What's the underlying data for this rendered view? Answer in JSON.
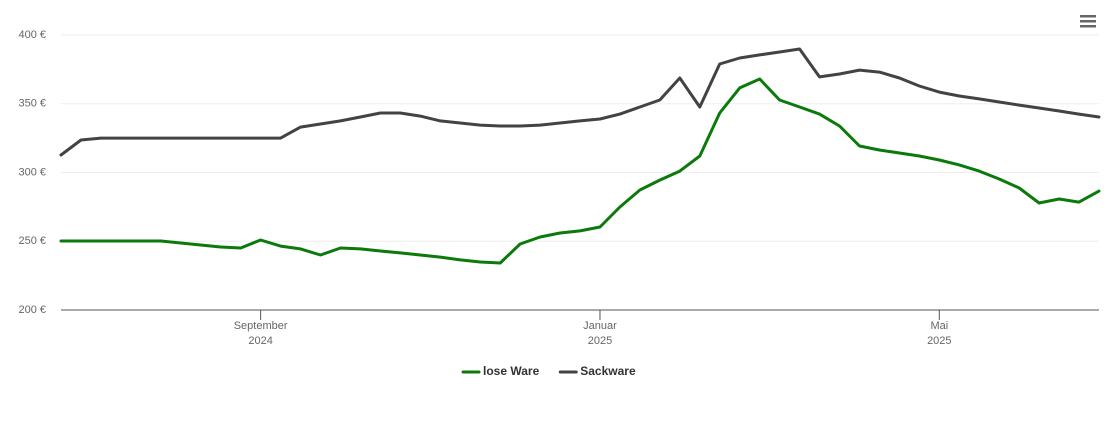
{
  "chart_data": {
    "type": "line",
    "categories": [
      null,
      null,
      null,
      null,
      null,
      null,
      null,
      null,
      null,
      null,
      [
        "September",
        "2024"
      ],
      null,
      null,
      null,
      null,
      null,
      null,
      null,
      null,
      null,
      null,
      null,
      null,
      null,
      null,
      null,
      null,
      [
        "Januar",
        "2025"
      ],
      null,
      null,
      null,
      null,
      null,
      null,
      null,
      null,
      null,
      null,
      null,
      null,
      null,
      null,
      null,
      null,
      [
        "Mai",
        "2025"
      ],
      null,
      null,
      null,
      null,
      null,
      null,
      null,
      null
    ],
    "series": [
      {
        "name": "lose Ware",
        "color": "#0b7a0b",
        "values": [
          250.2,
          250.2,
          250.2,
          250.2,
          250.2,
          250.2,
          248.7,
          247.3,
          245.8,
          245.1,
          250.9,
          246.5,
          244.4,
          240,
          245.1,
          244.4,
          242.9,
          241.5,
          240,
          238.5,
          236.4,
          234.9,
          234.2,
          248,
          253.1,
          256,
          257.5,
          260.4,
          274.9,
          287.3,
          294.5,
          301,
          312,
          343.3,
          361.5,
          368,
          352.7,
          347.6,
          342.5,
          333.8,
          319.3,
          316.4,
          314.2,
          312,
          309.1,
          305.5,
          301,
          295.3,
          288.7,
          277.8,
          280.7,
          278.5,
          286.5
        ]
      },
      {
        "name": "Sackware",
        "color": "#434343",
        "values": [
          312.7,
          323.6,
          325,
          325,
          325,
          325,
          325,
          325,
          325,
          325,
          325,
          325,
          333,
          335.3,
          337.5,
          340.4,
          343.3,
          343.3,
          341,
          337.5,
          336,
          334.5,
          333.8,
          333.8,
          334.5,
          336,
          337.5,
          338.9,
          342.5,
          347.6,
          352.7,
          368.7,
          347.6,
          378.9,
          383.3,
          385.5,
          387.6,
          389.8,
          369.5,
          371.6,
          374.5,
          373,
          368.7,
          362.9,
          358.5,
          355.6,
          353.5,
          351.3,
          349,
          346.9,
          344.7,
          342.5,
          340.4
        ]
      }
    ],
    "ylim": [
      200,
      400
    ],
    "yticks": [
      {
        "value": 200,
        "label": "200 €"
      },
      {
        "value": 250,
        "label": "250 €"
      },
      {
        "value": 300,
        "label": "300 €"
      },
      {
        "value": 350,
        "label": "350 €"
      },
      {
        "value": 400,
        "label": "400 €"
      }
    ],
    "grid": true,
    "legend": "bottom"
  }
}
